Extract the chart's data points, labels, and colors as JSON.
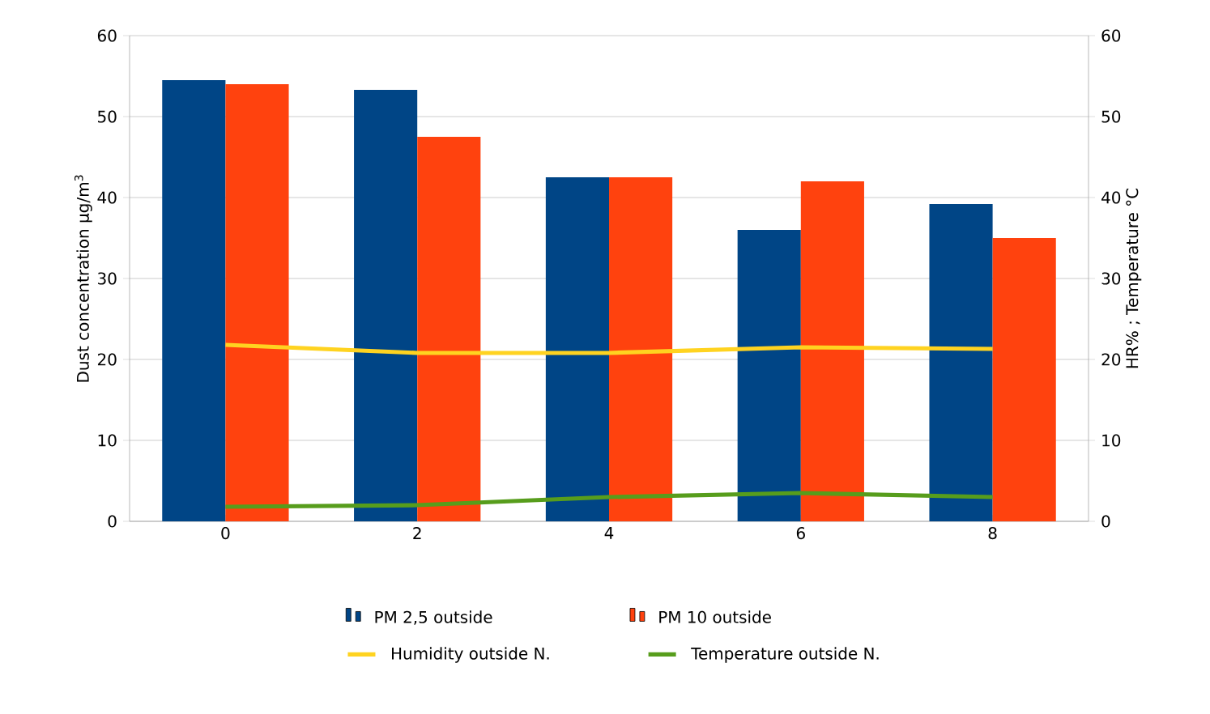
{
  "chart_data": {
    "type": "bar",
    "xlabel": null,
    "ylabel": "Dust concentration µg/m$^{3}$",
    "y2label": "HR% ; Temperature °C",
    "categories": [
      "0",
      "2",
      "4",
      "6",
      "8"
    ],
    "series": [
      {
        "name": "PM 2,5 outside",
        "color": "#004586",
        "values": [
          54.5,
          53.3,
          42.5,
          36,
          39.2
        ]
      },
      {
        "name": "PM 10 outside",
        "color": "#ff420e",
        "values": [
          54,
          47.5,
          42.5,
          42,
          35
        ]
      },
      {
        "name": "Humidity outside N.",
        "type": "line",
        "axis": "y2",
        "color": "#ffd320",
        "values": [
          21.8,
          20.8,
          20.8,
          21.5,
          21.3
        ]
      },
      {
        "name": "Temperature outside N.",
        "type": "line",
        "axis": "y2",
        "color": "#579d1c",
        "values": [
          1.8,
          2,
          3,
          3.5,
          3
        ]
      }
    ],
    "ylim": [
      0,
      60
    ],
    "yticks": [
      0,
      10,
      20,
      30,
      40,
      50,
      60
    ],
    "y2lim": [
      0,
      60
    ],
    "y2ticks": [
      0,
      10,
      20,
      30,
      40,
      50,
      60
    ],
    "grid": "y",
    "legend": "bottom"
  }
}
